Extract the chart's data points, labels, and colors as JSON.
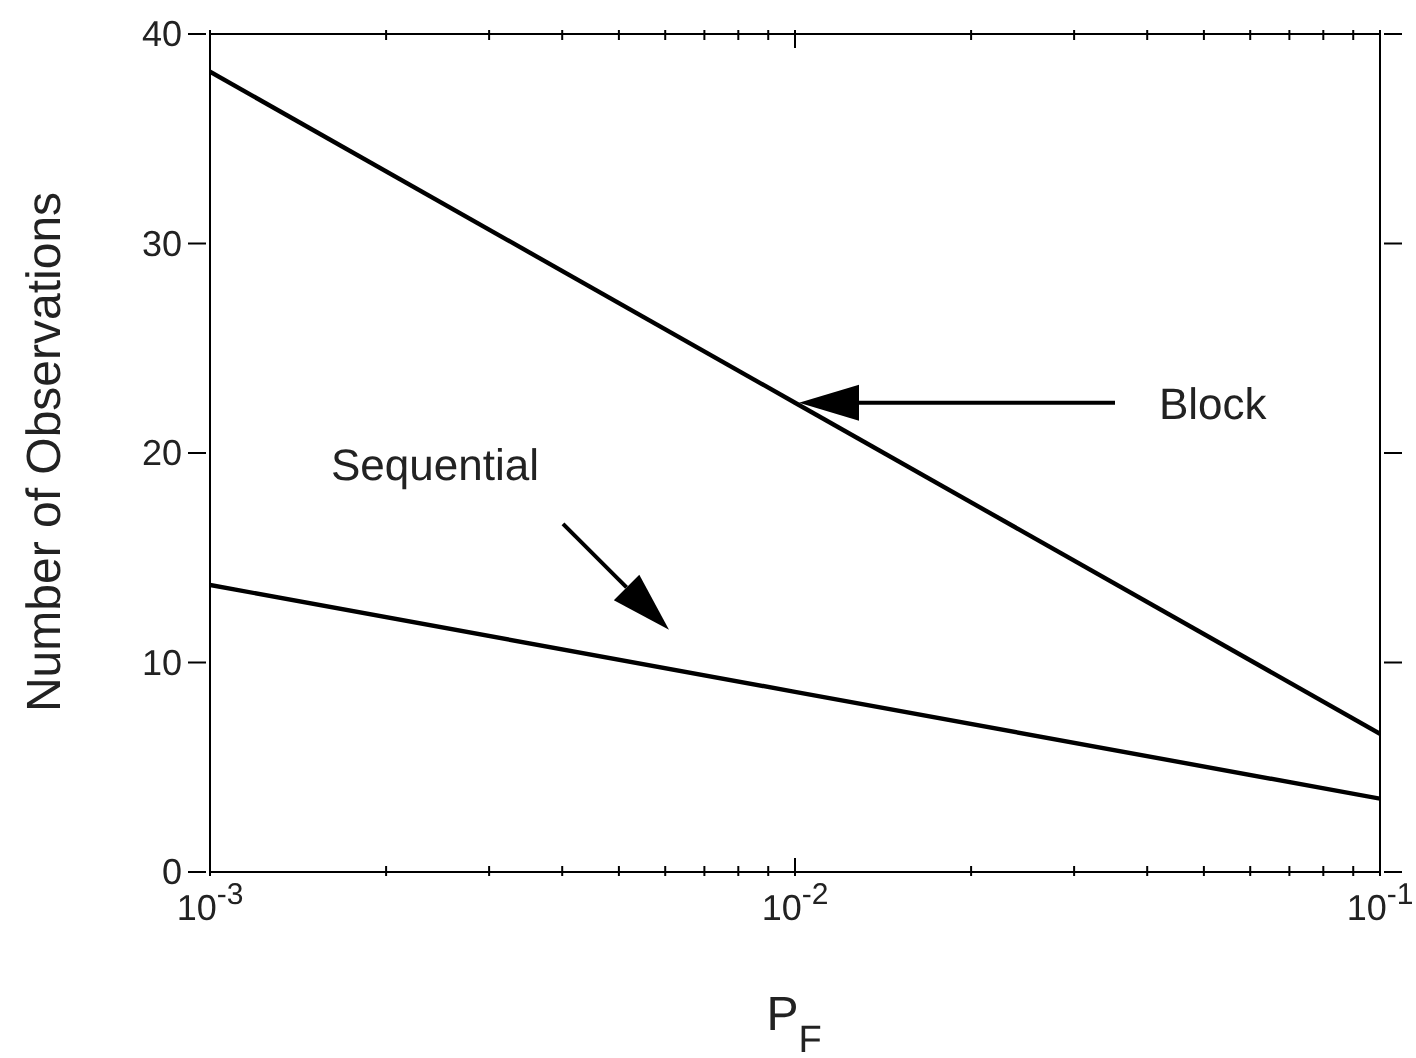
{
  "chart_data": {
    "type": "line",
    "xlabel": "P$_{F}$",
    "ylabel": "Number of Observations",
    "log": "x",
    "xlim": [
      0.001,
      0.1
    ],
    "xticks": [
      {
        "value": 0.001,
        "label": "10$^{-3}$"
      },
      {
        "value": 0.002,
        "label": null
      },
      {
        "value": 0.003,
        "label": null
      },
      {
        "value": 0.004,
        "label": null
      },
      {
        "value": 0.005,
        "label": null
      },
      {
        "value": 0.006,
        "label": null
      },
      {
        "value": 0.007,
        "label": null
      },
      {
        "value": 0.008,
        "label": null
      },
      {
        "value": 0.009,
        "label": null
      },
      {
        "value": 0.01,
        "label": "10$^{-2}$"
      },
      {
        "value": 0.02,
        "label": null
      },
      {
        "value": 0.03,
        "label": null
      },
      {
        "value": 0.04,
        "label": null
      },
      {
        "value": 0.05,
        "label": null
      },
      {
        "value": 0.06,
        "label": null
      },
      {
        "value": 0.07,
        "label": null
      },
      {
        "value": 0.08,
        "label": null
      },
      {
        "value": 0.09,
        "label": null
      },
      {
        "value": 0.1,
        "label": "10$^{-1}$"
      }
    ],
    "ylim": [
      0,
      40
    ],
    "yticks": [
      0,
      10,
      20,
      30,
      40
    ],
    "x": [
      0.001,
      0.01,
      0.1
    ],
    "series": [
      {
        "color": "#000000",
        "values": [
          38.2,
          22.4,
          6.6
        ]
      },
      {
        "color": "#000000",
        "values": [
          13.7,
          8.6,
          3.5
        ]
      }
    ],
    "annotations": [
      "Block",
      "Sequential"
    ]
  }
}
